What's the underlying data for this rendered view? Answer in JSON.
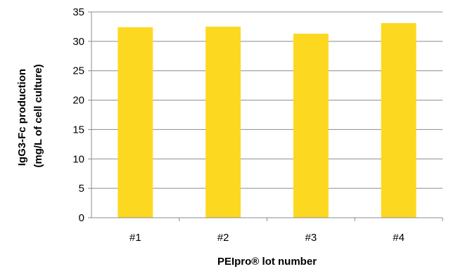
{
  "chart_data": {
    "type": "bar",
    "title": "",
    "xlabel": "PEIpro® lot number",
    "ylabel_lines": [
      "IgG3-Fc production",
      "(mg/L of cell culture)"
    ],
    "categories": [
      "#1",
      "#2",
      "#3",
      "#4"
    ],
    "values": [
      32.4,
      32.5,
      31.3,
      33.1
    ],
    "ylim": [
      0,
      35
    ],
    "yticks": [
      0,
      5,
      10,
      15,
      20,
      25,
      30,
      35
    ],
    "grid": true,
    "legend": "none",
    "bar_color": "#fdd820",
    "grid_color": "#8c8c8c",
    "axis_color": "#8c8c8c"
  }
}
